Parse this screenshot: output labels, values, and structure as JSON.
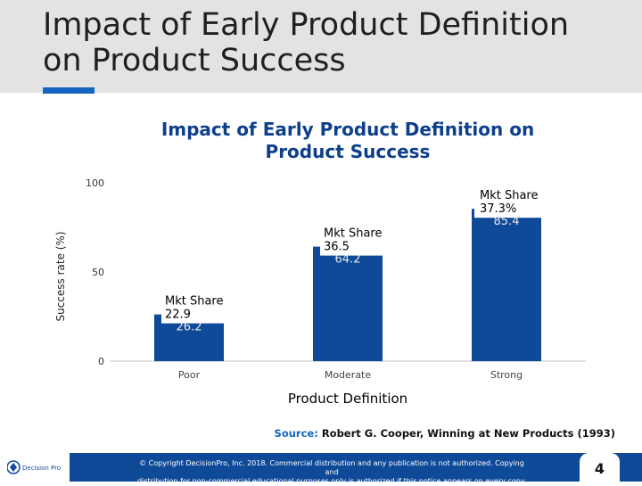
{
  "slide": {
    "title": "Impact of Early Product Definition on Product Success"
  },
  "chart_data": {
    "type": "bar",
    "title": "Impact of Early Product Definition on Product Success",
    "xlabel": "Product Definition",
    "ylabel": "Success rate (%)",
    "ylim": [
      0,
      100
    ],
    "yticks": [
      0,
      50,
      100
    ],
    "categories": [
      "Poor",
      "Moderate",
      "Strong"
    ],
    "values": [
      26.2,
      64.2,
      85.4
    ],
    "value_labels": [
      "26.2",
      "64.2",
      "85.4"
    ],
    "annotations": [
      {
        "lines": [
          "Mkt Share",
          "22.9"
        ]
      },
      {
        "lines": [
          "Mkt Share",
          "36.5"
        ]
      },
      {
        "lines": [
          "Mkt Share",
          "37.3%"
        ]
      }
    ],
    "bar_color": "#0f4a99",
    "grid": false
  },
  "source": {
    "label": "Source:",
    "text": "Robert G. Cooper, Winning at New Products (1993)"
  },
  "footer": {
    "logo_text": "Decision Pro",
    "copyright_line1": "© Copyright DecisionPro, Inc. 2018. Commercial distribution and any publication is not authorized. Copying and",
    "copyright_line2": "distribution for non-commercial educational purposes only is authorized if this notice appears on every copy.",
    "page_number": "4",
    "band_color": "#0f4a99"
  }
}
